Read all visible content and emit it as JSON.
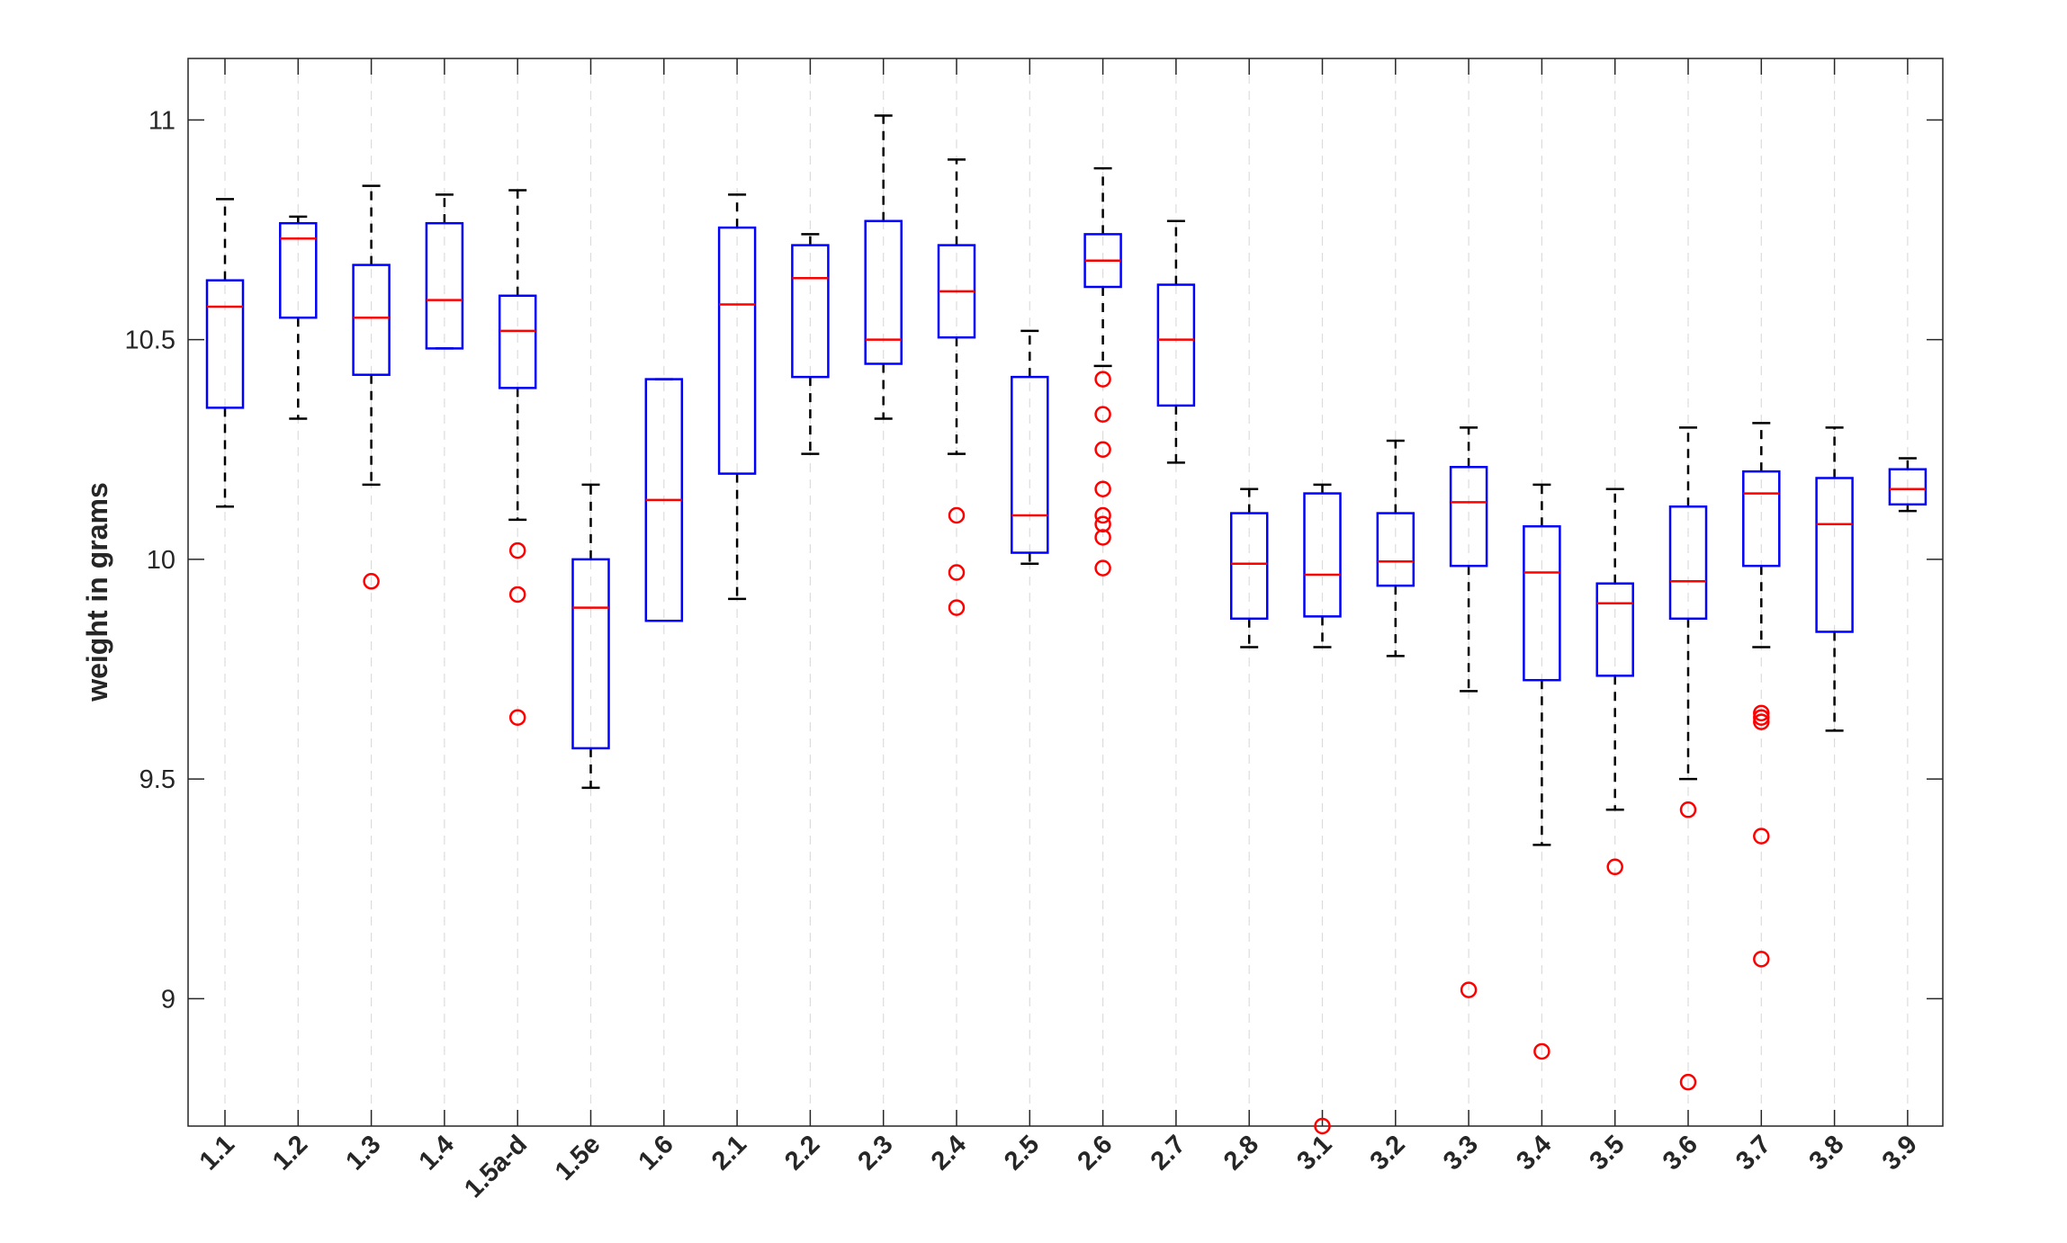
{
  "chart_data": {
    "type": "box",
    "ylabel": "weight in grams",
    "ylim": [
      8.71,
      11.14
    ],
    "yticks": [
      "9",
      "9.5",
      "10",
      "10.5",
      "11"
    ],
    "grid": "vertical dashed",
    "colors": {
      "box": "#0000ff",
      "median": "#ff0000",
      "whisker": "#000000",
      "outlier": "#ff0000",
      "grid": "#dcdcdc",
      "axis": "#262626"
    },
    "categories": [
      "1.1",
      "1.2",
      "1.3",
      "1.4",
      "1.5a-d",
      "1.5e",
      "1.6",
      "2.1",
      "2.2",
      "2.3",
      "2.4",
      "2.5",
      "2.6",
      "2.7",
      "2.8",
      "3.1",
      "3.2",
      "3.3",
      "3.4",
      "3.5",
      "3.6",
      "3.7",
      "3.8",
      "3.9"
    ],
    "boxes": [
      {
        "label": "1.1",
        "low": 10.12,
        "q1": 10.345,
        "median": 10.575,
        "q3": 10.635,
        "high": 10.82,
        "outliers": []
      },
      {
        "label": "1.2",
        "low": 10.32,
        "q1": 10.55,
        "median": 10.73,
        "q3": 10.765,
        "high": 10.78,
        "outliers": []
      },
      {
        "label": "1.3",
        "low": 10.17,
        "q1": 10.42,
        "median": 10.55,
        "q3": 10.67,
        "high": 10.85,
        "outliers": [
          9.95
        ]
      },
      {
        "label": "1.4",
        "low": 10.48,
        "q1": 10.48,
        "median": 10.59,
        "q3": 10.765,
        "high": 10.83,
        "outliers": []
      },
      {
        "label": "1.5a-d",
        "low": 10.09,
        "q1": 10.39,
        "median": 10.52,
        "q3": 10.6,
        "high": 10.84,
        "outliers": [
          10.02,
          9.92,
          9.64
        ]
      },
      {
        "label": "1.5e",
        "low": 9.48,
        "q1": 9.57,
        "median": 9.89,
        "q3": 10.0,
        "high": 10.17,
        "outliers": []
      },
      {
        "label": "1.6",
        "low": 9.86,
        "q1": 9.86,
        "median": 10.135,
        "q3": 10.41,
        "high": 10.41,
        "outliers": []
      },
      {
        "label": "2.1",
        "low": 9.91,
        "q1": 10.195,
        "median": 10.58,
        "q3": 10.755,
        "high": 10.83,
        "outliers": []
      },
      {
        "label": "2.2",
        "low": 10.24,
        "q1": 10.415,
        "median": 10.64,
        "q3": 10.715,
        "high": 10.74,
        "outliers": []
      },
      {
        "label": "2.3",
        "low": 10.32,
        "q1": 10.445,
        "median": 10.5,
        "q3": 10.77,
        "high": 11.01,
        "outliers": []
      },
      {
        "label": "2.4",
        "low": 10.24,
        "q1": 10.505,
        "median": 10.61,
        "q3": 10.715,
        "high": 10.91,
        "outliers": [
          10.1,
          9.97,
          9.89
        ]
      },
      {
        "label": "2.5",
        "low": 9.99,
        "q1": 10.015,
        "median": 10.1,
        "q3": 10.415,
        "high": 10.52,
        "outliers": []
      },
      {
        "label": "2.6",
        "low": 10.44,
        "q1": 10.62,
        "median": 10.68,
        "q3": 10.74,
        "high": 10.89,
        "outliers": [
          10.41,
          10.33,
          10.25,
          10.16,
          10.1,
          10.08,
          10.05,
          9.98
        ]
      },
      {
        "label": "2.7",
        "low": 10.22,
        "q1": 10.35,
        "median": 10.5,
        "q3": 10.625,
        "high": 10.77,
        "outliers": []
      },
      {
        "label": "2.8",
        "low": 9.8,
        "q1": 9.865,
        "median": 9.99,
        "q3": 10.105,
        "high": 10.16,
        "outliers": []
      },
      {
        "label": "3.1",
        "low": 9.8,
        "q1": 9.87,
        "median": 9.965,
        "q3": 10.15,
        "high": 10.17,
        "outliers": [
          8.71
        ]
      },
      {
        "label": "3.2",
        "low": 9.78,
        "q1": 9.94,
        "median": 9.995,
        "q3": 10.105,
        "high": 10.27,
        "outliers": []
      },
      {
        "label": "3.3",
        "low": 9.7,
        "q1": 9.985,
        "median": 10.13,
        "q3": 10.21,
        "high": 10.3,
        "outliers": [
          9.02
        ]
      },
      {
        "label": "3.4",
        "low": 9.35,
        "q1": 9.725,
        "median": 9.97,
        "q3": 10.075,
        "high": 10.17,
        "outliers": [
          8.88
        ]
      },
      {
        "label": "3.5",
        "low": 9.43,
        "q1": 9.735,
        "median": 9.9,
        "q3": 9.945,
        "high": 10.16,
        "outliers": [
          9.3
        ]
      },
      {
        "label": "3.6",
        "low": 9.5,
        "q1": 9.865,
        "median": 9.95,
        "q3": 10.12,
        "high": 10.3,
        "outliers": [
          9.43,
          8.81
        ]
      },
      {
        "label": "3.7",
        "low": 9.8,
        "q1": 9.985,
        "median": 10.15,
        "q3": 10.2,
        "high": 10.31,
        "outliers": [
          9.65,
          9.64,
          9.63,
          9.37,
          9.09
        ]
      },
      {
        "label": "3.8",
        "low": 9.61,
        "q1": 9.835,
        "median": 10.08,
        "q3": 10.185,
        "high": 10.3,
        "outliers": []
      },
      {
        "label": "3.9",
        "low": 10.11,
        "q1": 10.125,
        "median": 10.16,
        "q3": 10.205,
        "high": 10.23,
        "outliers": []
      }
    ]
  }
}
